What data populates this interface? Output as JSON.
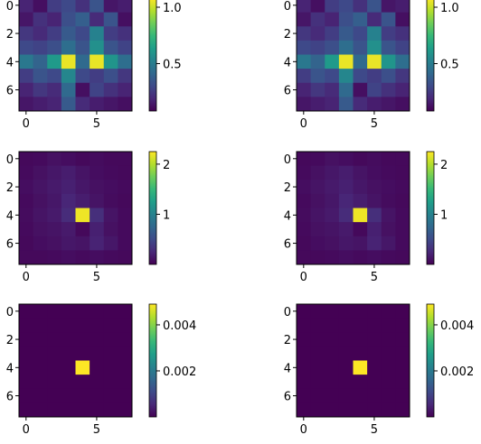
{
  "chart_data": [
    {
      "type": "heatmap",
      "grid": [
        [
          0.18,
          0.12,
          0.26,
          0.3,
          0.22,
          0.34,
          0.14,
          0.16
        ],
        [
          0.14,
          0.22,
          0.18,
          0.32,
          0.38,
          0.2,
          0.34,
          0.12
        ],
        [
          0.24,
          0.2,
          0.26,
          0.36,
          0.3,
          0.52,
          0.26,
          0.22
        ],
        [
          0.3,
          0.28,
          0.32,
          0.44,
          0.34,
          0.58,
          0.34,
          0.28
        ],
        [
          0.48,
          0.4,
          0.62,
          1.05,
          0.42,
          1.05,
          0.6,
          0.44
        ],
        [
          0.26,
          0.34,
          0.3,
          0.54,
          0.3,
          0.26,
          0.32,
          0.24
        ],
        [
          0.18,
          0.24,
          0.2,
          0.42,
          0.12,
          0.28,
          0.22,
          0.18
        ],
        [
          0.14,
          0.16,
          0.18,
          0.36,
          0.2,
          0.16,
          0.14,
          0.12
        ]
      ],
      "vmin": 0.08,
      "vmax": 1.08,
      "x_ticks": [
        0,
        5
      ],
      "y_ticks": [
        0,
        2,
        4,
        6
      ],
      "colorbar_ticks": [
        {
          "value": 0.5,
          "label": "0.5"
        },
        {
          "value": 1.0,
          "label": "1.0"
        }
      ]
    },
    {
      "type": "heatmap",
      "grid": [
        [
          0.18,
          0.12,
          0.26,
          0.3,
          0.22,
          0.34,
          0.14,
          0.16
        ],
        [
          0.14,
          0.22,
          0.18,
          0.32,
          0.38,
          0.2,
          0.34,
          0.12
        ],
        [
          0.24,
          0.2,
          0.26,
          0.36,
          0.3,
          0.52,
          0.26,
          0.22
        ],
        [
          0.3,
          0.28,
          0.32,
          0.44,
          0.34,
          0.58,
          0.34,
          0.28
        ],
        [
          0.48,
          0.4,
          0.62,
          1.05,
          0.42,
          1.05,
          0.6,
          0.44
        ],
        [
          0.26,
          0.34,
          0.3,
          0.54,
          0.3,
          0.26,
          0.32,
          0.24
        ],
        [
          0.18,
          0.24,
          0.2,
          0.42,
          0.12,
          0.28,
          0.22,
          0.18
        ],
        [
          0.14,
          0.16,
          0.18,
          0.36,
          0.2,
          0.16,
          0.14,
          0.12
        ]
      ],
      "vmin": 0.08,
      "vmax": 1.08,
      "x_ticks": [
        0,
        5
      ],
      "y_ticks": [
        0,
        2,
        4,
        6
      ],
      "colorbar_ticks": [
        {
          "value": 0.5,
          "label": "0.5"
        },
        {
          "value": 1.0,
          "label": "1.0"
        }
      ]
    },
    {
      "type": "heatmap",
      "grid": [
        [
          0.05,
          0.06,
          0.1,
          0.08,
          0.05,
          0.07,
          0.05,
          0.05
        ],
        [
          0.06,
          0.1,
          0.14,
          0.18,
          0.12,
          0.08,
          0.06,
          0.05
        ],
        [
          0.08,
          0.12,
          0.16,
          0.2,
          0.14,
          0.1,
          0.08,
          0.06
        ],
        [
          0.06,
          0.1,
          0.14,
          0.24,
          0.18,
          0.12,
          0.07,
          0.05
        ],
        [
          0.07,
          0.12,
          0.16,
          0.28,
          2.2,
          0.3,
          0.12,
          0.06
        ],
        [
          0.06,
          0.1,
          0.12,
          0.16,
          0.05,
          0.2,
          0.1,
          0.06
        ],
        [
          0.05,
          0.08,
          0.1,
          0.14,
          0.12,
          0.22,
          0.14,
          0.06
        ],
        [
          0.05,
          0.05,
          0.06,
          0.08,
          0.06,
          0.08,
          0.06,
          0.05
        ]
      ],
      "vmin": 0.0,
      "vmax": 2.25,
      "x_ticks": [
        0,
        5
      ],
      "y_ticks": [
        0,
        2,
        4,
        6
      ],
      "colorbar_ticks": [
        {
          "value": 1,
          "label": "1"
        },
        {
          "value": 2,
          "label": "2"
        }
      ]
    },
    {
      "type": "heatmap",
      "grid": [
        [
          0.05,
          0.06,
          0.1,
          0.08,
          0.05,
          0.07,
          0.05,
          0.05
        ],
        [
          0.06,
          0.1,
          0.14,
          0.18,
          0.12,
          0.08,
          0.06,
          0.05
        ],
        [
          0.08,
          0.12,
          0.16,
          0.2,
          0.14,
          0.1,
          0.08,
          0.06
        ],
        [
          0.06,
          0.1,
          0.14,
          0.24,
          0.18,
          0.12,
          0.07,
          0.05
        ],
        [
          0.07,
          0.12,
          0.16,
          0.28,
          2.2,
          0.3,
          0.12,
          0.06
        ],
        [
          0.06,
          0.1,
          0.12,
          0.16,
          0.05,
          0.2,
          0.1,
          0.06
        ],
        [
          0.05,
          0.08,
          0.1,
          0.14,
          0.12,
          0.22,
          0.14,
          0.06
        ],
        [
          0.05,
          0.05,
          0.06,
          0.08,
          0.06,
          0.08,
          0.06,
          0.05
        ]
      ],
      "vmin": 0.0,
      "vmax": 2.25,
      "x_ticks": [
        0,
        5
      ],
      "y_ticks": [
        0,
        2,
        4,
        6
      ],
      "colorbar_ticks": [
        {
          "value": 1,
          "label": "1"
        },
        {
          "value": 2,
          "label": "2"
        }
      ]
    },
    {
      "type": "heatmap",
      "grid": [
        [
          0,
          0,
          0,
          0,
          0,
          0,
          0,
          0
        ],
        [
          0,
          0,
          0,
          0,
          0,
          0,
          0,
          0
        ],
        [
          0,
          0,
          0,
          0,
          0,
          0,
          0,
          0
        ],
        [
          0,
          0,
          0,
          0,
          0,
          0,
          0,
          0
        ],
        [
          0,
          0,
          0,
          0,
          0.0049,
          0,
          0,
          0
        ],
        [
          0,
          0,
          0,
          0,
          0,
          0,
          0,
          0
        ],
        [
          0,
          0,
          0,
          0,
          0,
          0,
          0,
          0
        ],
        [
          0,
          0,
          0,
          0,
          0,
          0,
          0,
          0
        ]
      ],
      "vmin": 0.0,
      "vmax": 0.0049,
      "x_ticks": [
        0,
        5
      ],
      "y_ticks": [
        0,
        2,
        4,
        6
      ],
      "colorbar_ticks": [
        {
          "value": 0.002,
          "label": "0.002"
        },
        {
          "value": 0.004,
          "label": "0.004"
        }
      ]
    },
    {
      "type": "heatmap",
      "grid": [
        [
          0,
          0,
          0,
          0,
          0,
          0,
          0,
          0
        ],
        [
          0,
          0,
          0,
          0,
          0,
          0,
          0,
          0
        ],
        [
          0,
          0,
          0,
          0,
          0,
          0,
          0,
          0
        ],
        [
          0,
          0,
          0,
          0,
          0,
          0,
          0,
          0
        ],
        [
          0,
          0,
          0,
          0,
          0.0049,
          0,
          0,
          0
        ],
        [
          0,
          0,
          0,
          0,
          0,
          0,
          0,
          0
        ],
        [
          0,
          0,
          0,
          0,
          0,
          0,
          0,
          0
        ],
        [
          0,
          0,
          0,
          0,
          0,
          0,
          0,
          0
        ]
      ],
      "vmin": 0.0,
      "vmax": 0.0049,
      "x_ticks": [
        0,
        5
      ],
      "y_ticks": [
        0,
        2,
        4,
        6
      ],
      "colorbar_ticks": [
        {
          "value": 0.002,
          "label": "0.002"
        },
        {
          "value": 0.004,
          "label": "0.004"
        }
      ]
    }
  ],
  "colormap": "viridis"
}
